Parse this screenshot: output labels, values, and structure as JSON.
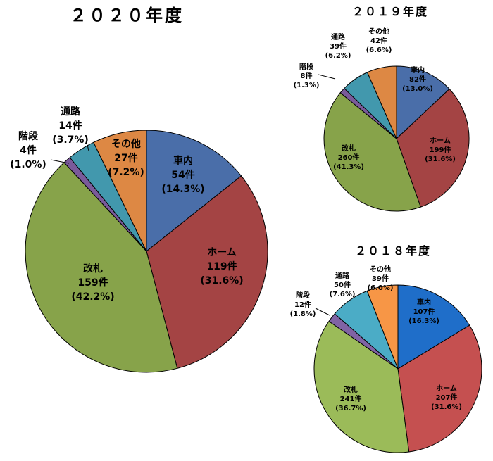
{
  "chart_data": [
    {
      "type": "pie",
      "title": "２０２０年度",
      "slices": [
        {
          "name": "車内",
          "count": "54件",
          "pct": "(14.3%)",
          "value": 14.3,
          "color": "#4a6ea9"
        },
        {
          "name": "ホーム",
          "count": "119件",
          "pct": "(31.6%)",
          "value": 31.6,
          "color": "#a44444"
        },
        {
          "name": "改札",
          "count": "159件",
          "pct": "(42.2%)",
          "value": 42.2,
          "color": "#87a34a"
        },
        {
          "name": "階段",
          "count": "4件",
          "pct": "(1.0%)",
          "value": 1.0,
          "color": "#7a5a9a"
        },
        {
          "name": "通路",
          "count": "14件",
          "pct": "(3.7%)",
          "value": 3.7,
          "color": "#4298ad"
        },
        {
          "name": "その他",
          "count": "27件",
          "pct": "(7.2%)",
          "value": 7.2,
          "color": "#dd8844"
        }
      ]
    },
    {
      "type": "pie",
      "title": "２０１９年度",
      "slices": [
        {
          "name": "車内",
          "count": "82件",
          "pct": "(13.0%)",
          "value": 13.0,
          "color": "#4a6ea9"
        },
        {
          "name": "ホーム",
          "count": "199件",
          "pct": "(31.6%)",
          "value": 31.6,
          "color": "#a44444"
        },
        {
          "name": "改札",
          "count": "260件",
          "pct": "(41.3%)",
          "value": 41.3,
          "color": "#87a34a"
        },
        {
          "name": "階段",
          "count": "8件",
          "pct": "(1.3%)",
          "value": 1.3,
          "color": "#7a5a9a"
        },
        {
          "name": "通路",
          "count": "39件",
          "pct": "(6.2%)",
          "value": 6.2,
          "color": "#4298ad"
        },
        {
          "name": "その他",
          "count": "42件",
          "pct": "(6.6%)",
          "value": 6.6,
          "color": "#dd8844"
        }
      ]
    },
    {
      "type": "pie",
      "title": "２０１８年度",
      "slices": [
        {
          "name": "車内",
          "count": "107件",
          "pct": "(16.3%)",
          "value": 16.3,
          "color": "#1f6ec9"
        },
        {
          "name": "ホーム",
          "count": "207件",
          "pct": "(31.6%)",
          "value": 31.6,
          "color": "#c55050"
        },
        {
          "name": "改札",
          "count": "241件",
          "pct": "(36.7%)",
          "value": 36.7,
          "color": "#9bbb59"
        },
        {
          "name": "階段",
          "count": "12件",
          "pct": "(1.8%)",
          "value": 1.8,
          "color": "#8063a4"
        },
        {
          "name": "通路",
          "count": "50件",
          "pct": "(7.6%)",
          "value": 7.6,
          "color": "#4bacc6"
        },
        {
          "name": "その他",
          "count": "39件",
          "pct": "(6.0%)",
          "value": 6.0,
          "color": "#f79646"
        }
      ]
    }
  ]
}
